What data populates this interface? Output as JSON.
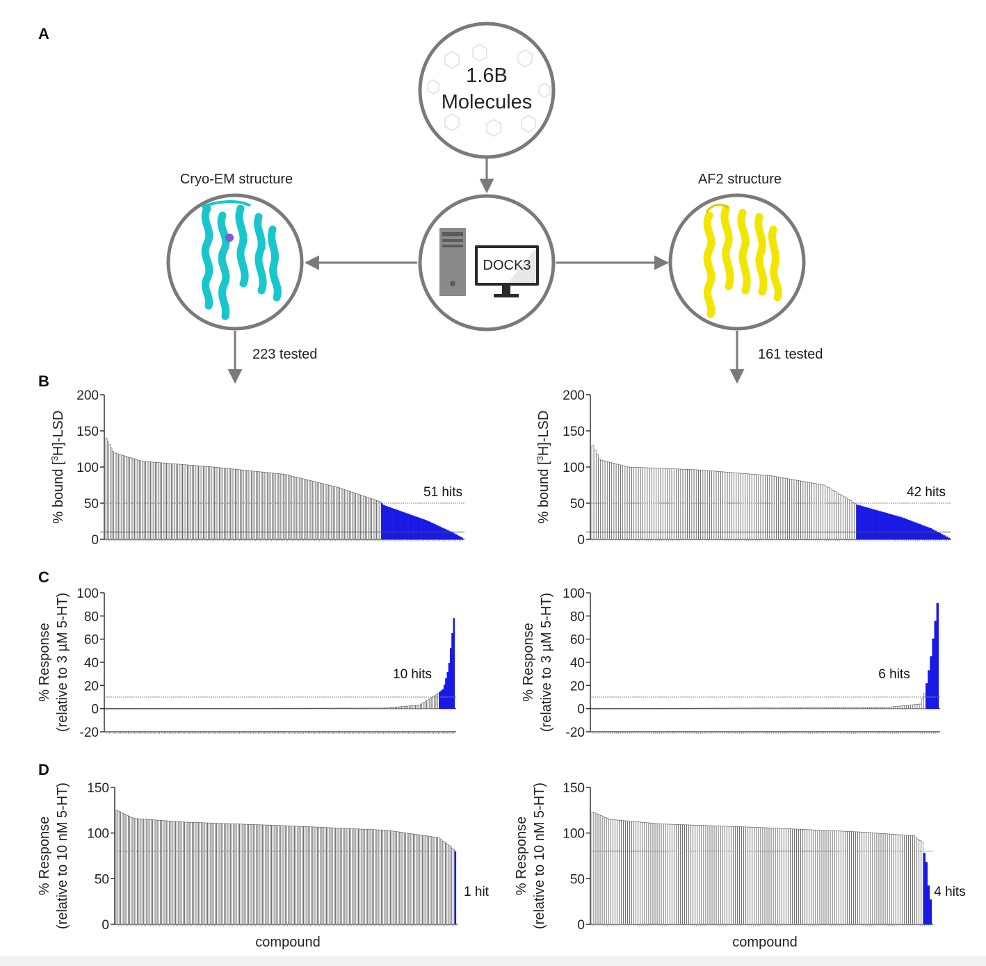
{
  "panels": {
    "a": "A",
    "b": "B",
    "c": "C",
    "d": "D"
  },
  "flow": {
    "library_line1": "1.6B",
    "library_line2": "Molecules",
    "docking_label": "DOCK3",
    "left_structure": "Cryo-EM structure",
    "right_structure": "AF2 structure",
    "left_tested": "223 tested",
    "right_tested": "161 tested",
    "colors": {
      "cryo": "#19c6cc",
      "af2": "#f2e600",
      "ring": "#7a7a7a",
      "arrow": "#7a7a7a"
    }
  },
  "colors": {
    "bar": "#555555",
    "hit": "#1a1ae6"
  },
  "chart_data": [
    {
      "id": "B-left",
      "type": "bar",
      "n": 223,
      "ylabel_pre": "% bound [",
      "ylabel_sup": "3",
      "ylabel_post": "H]-LSD",
      "ylim": [
        0,
        200
      ],
      "yticks": [
        0,
        50,
        100,
        150,
        200
      ],
      "threshold": 50,
      "baseline_line": 10,
      "hits_label": "51 hits",
      "hits": 51,
      "profile": [
        [
          0,
          140
        ],
        [
          0.02,
          120
        ],
        [
          0.1,
          108
        ],
        [
          0.3,
          100
        ],
        [
          0.5,
          90
        ],
        [
          0.65,
          72
        ],
        [
          0.77,
          52
        ],
        [
          0.78,
          47
        ],
        [
          0.9,
          26
        ],
        [
          0.97,
          10
        ],
        [
          1,
          2
        ]
      ]
    },
    {
      "id": "B-right",
      "type": "bar",
      "n": 161,
      "ylabel_pre": "% bound [",
      "ylabel_sup": "3",
      "ylabel_post": "H]-LSD",
      "ylim": [
        0,
        200
      ],
      "yticks": [
        0,
        50,
        100,
        150,
        200
      ],
      "threshold": 50,
      "baseline_line": 10,
      "hits_label": "42 hits",
      "hits": 42,
      "profile": [
        [
          0,
          130
        ],
        [
          0.02,
          110
        ],
        [
          0.1,
          100
        ],
        [
          0.3,
          96
        ],
        [
          0.5,
          88
        ],
        [
          0.65,
          75
        ],
        [
          0.73,
          52
        ],
        [
          0.74,
          48
        ],
        [
          0.87,
          30
        ],
        [
          0.95,
          15
        ],
        [
          1,
          2
        ]
      ]
    },
    {
      "id": "C-left",
      "type": "bar",
      "n": 223,
      "ylabel_line1": "% Response",
      "ylabel_line2": "(relative to 3 µM 5-HT)",
      "ylim": [
        -20,
        100
      ],
      "yticks": [
        -20,
        0,
        20,
        40,
        60,
        80,
        100
      ],
      "threshold": 10,
      "hits_label": "10 hits",
      "hits": 10,
      "profile": [
        [
          0,
          0
        ],
        [
          0.8,
          0.5
        ],
        [
          0.9,
          3
        ],
        [
          0.95,
          12
        ],
        [
          0.97,
          17
        ],
        [
          0.985,
          35
        ],
        [
          1,
          78
        ]
      ]
    },
    {
      "id": "C-right",
      "type": "bar",
      "n": 161,
      "ylabel_line1": "% Response",
      "ylabel_line2": "(relative to 3 µM 5-HT)",
      "ylim": [
        -20,
        100
      ],
      "yticks": [
        -20,
        0,
        20,
        40,
        60,
        80,
        100
      ],
      "threshold": 10,
      "hits_label": "6 hits",
      "hits": 6,
      "profile": [
        [
          0,
          0
        ],
        [
          0.85,
          1
        ],
        [
          0.95,
          4
        ],
        [
          0.965,
          15
        ],
        [
          0.98,
          42
        ],
        [
          1,
          91
        ]
      ]
    },
    {
      "id": "D-left",
      "type": "bar",
      "n": 223,
      "ylabel_line1": "% Response",
      "ylabel_line2": "(relative to 10 nM 5-HT)",
      "xlabel": "compound",
      "ylim": [
        0,
        150
      ],
      "yticks": [
        0,
        50,
        100,
        150
      ],
      "threshold": 80,
      "hits_label": "1 hit",
      "hits": 1,
      "hits_low": true,
      "profile": [
        [
          0,
          125
        ],
        [
          0.05,
          116
        ],
        [
          0.2,
          112
        ],
        [
          0.5,
          108
        ],
        [
          0.8,
          103
        ],
        [
          0.95,
          95
        ],
        [
          0.99,
          84
        ],
        [
          1,
          80
        ]
      ]
    },
    {
      "id": "D-right",
      "type": "bar",
      "n": 161,
      "ylabel_line1": "% Response",
      "ylabel_line2": "(relative to 10 nM 5-HT)",
      "xlabel": "compound",
      "ylim": [
        0,
        150
      ],
      "yticks": [
        0,
        50,
        100,
        150
      ],
      "threshold": 80,
      "hits_label": "4 hits",
      "hits": 4,
      "hits_low": true,
      "profile": [
        [
          0,
          123
        ],
        [
          0.05,
          115
        ],
        [
          0.2,
          110
        ],
        [
          0.5,
          106
        ],
        [
          0.8,
          101
        ],
        [
          0.95,
          97
        ],
        [
          0.975,
          90
        ],
        [
          0.98,
          80
        ],
        [
          0.99,
          64
        ],
        [
          0.995,
          35
        ],
        [
          1,
          27
        ]
      ]
    }
  ]
}
